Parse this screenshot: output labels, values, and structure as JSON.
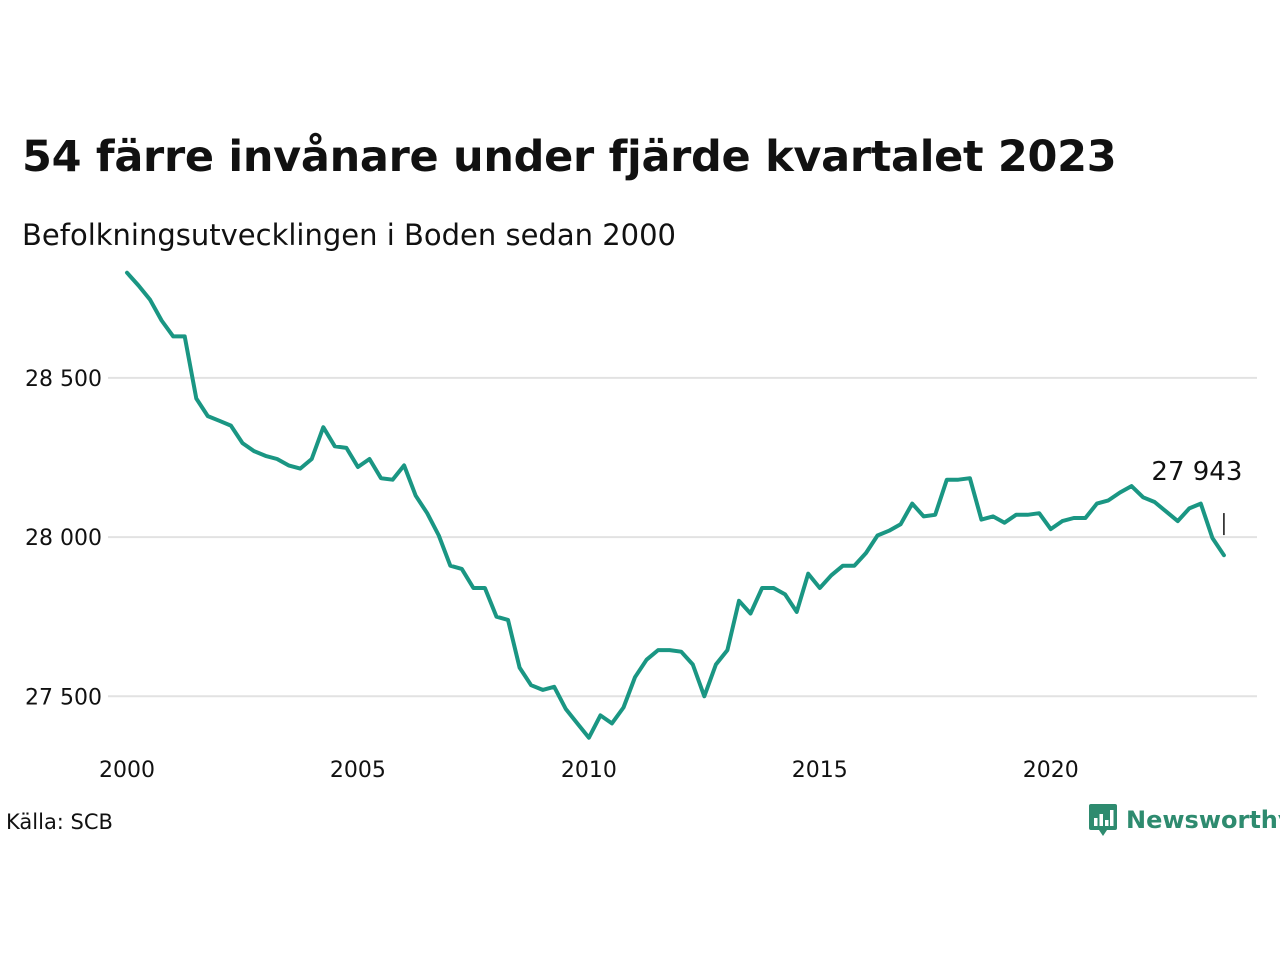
{
  "title": "54 färre invånare under fjärde kvartalet 2023",
  "subtitle": "Befolkningsutvecklingen i Boden sedan 2000",
  "source": "Källa: SCB",
  "brand": {
    "name": "Newsworthy",
    "icon": "newsworthy-logo-icon",
    "color": "#2e8b6f"
  },
  "chart_data": {
    "type": "line",
    "title": "54 färre invånare under fjärde kvartalet 2023",
    "subtitle": "Befolkningsutvecklingen i Boden sedan 2000",
    "xlabel": "",
    "ylabel": "",
    "xlim": [
      2000,
      2024.25
    ],
    "ylim": [
      27300,
      28870
    ],
    "y_ticks": [
      {
        "value": 27500,
        "label": "27 500"
      },
      {
        "value": 28000,
        "label": "28 000"
      },
      {
        "value": 28500,
        "label": "28 500"
      }
    ],
    "x_ticks": [
      {
        "value": 2000,
        "label": "2000"
      },
      {
        "value": 2005,
        "label": "2005"
      },
      {
        "value": 2010,
        "label": "2010"
      },
      {
        "value": 2015,
        "label": "2015"
      },
      {
        "value": 2020,
        "label": "2020"
      }
    ],
    "grid": "horizontal",
    "line_color": "#1a9683",
    "end_label": {
      "text": "27 943",
      "value": 27943
    },
    "series": [
      {
        "frequency": "quarterly",
        "start": "2000 Q1",
        "values": [
          28830,
          28790,
          28745,
          28680,
          28630,
          28630,
          28435,
          28380,
          28365,
          28350,
          28295,
          28270,
          28255,
          28245,
          28225,
          28215,
          28245,
          28345,
          28285,
          28280,
          28220,
          28245,
          28185,
          28180,
          28225,
          28130,
          28075,
          28005,
          27910,
          27900,
          27840,
          27840,
          27750,
          27740,
          27590,
          27535,
          27520,
          27530,
          27460,
          27415,
          27370,
          27440,
          27415,
          27465,
          27560,
          27615,
          27645,
          27645,
          27640,
          27600,
          27500,
          27600,
          27645,
          27800,
          27760,
          27840,
          27840,
          27820,
          27765,
          27885,
          27840,
          27880,
          27910,
          27910,
          27950,
          28005,
          28020,
          28040,
          28105,
          28065,
          28070,
          28180,
          28180,
          28185,
          28055,
          28065,
          28045,
          28070,
          28070,
          28075,
          28025,
          28050,
          28060,
          28060,
          28105,
          28115,
          28140,
          28160,
          28125,
          28110,
          28080,
          28050,
          28090,
          28105,
          27997,
          27943
        ]
      }
    ]
  }
}
